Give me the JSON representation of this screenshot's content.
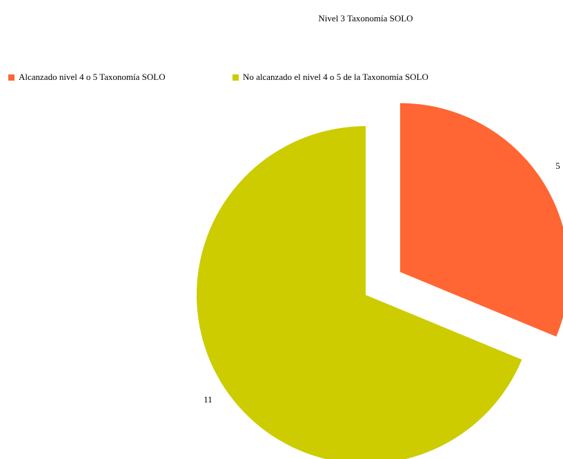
{
  "chart_data": {
    "type": "pie",
    "title": "Nivel 3 Taxonomía SOLO",
    "categories": [
      "Alcanzado nivel  4 o 5 Taxonomía SOLO",
      "No alcanzado el nivel 4 o 5 de la Taxonomía SOLO"
    ],
    "values": [
      5,
      11
    ],
    "colors": [
      "#ff6633",
      "#cccc00"
    ],
    "exploded": [
      true,
      false
    ],
    "legend": "top"
  }
}
